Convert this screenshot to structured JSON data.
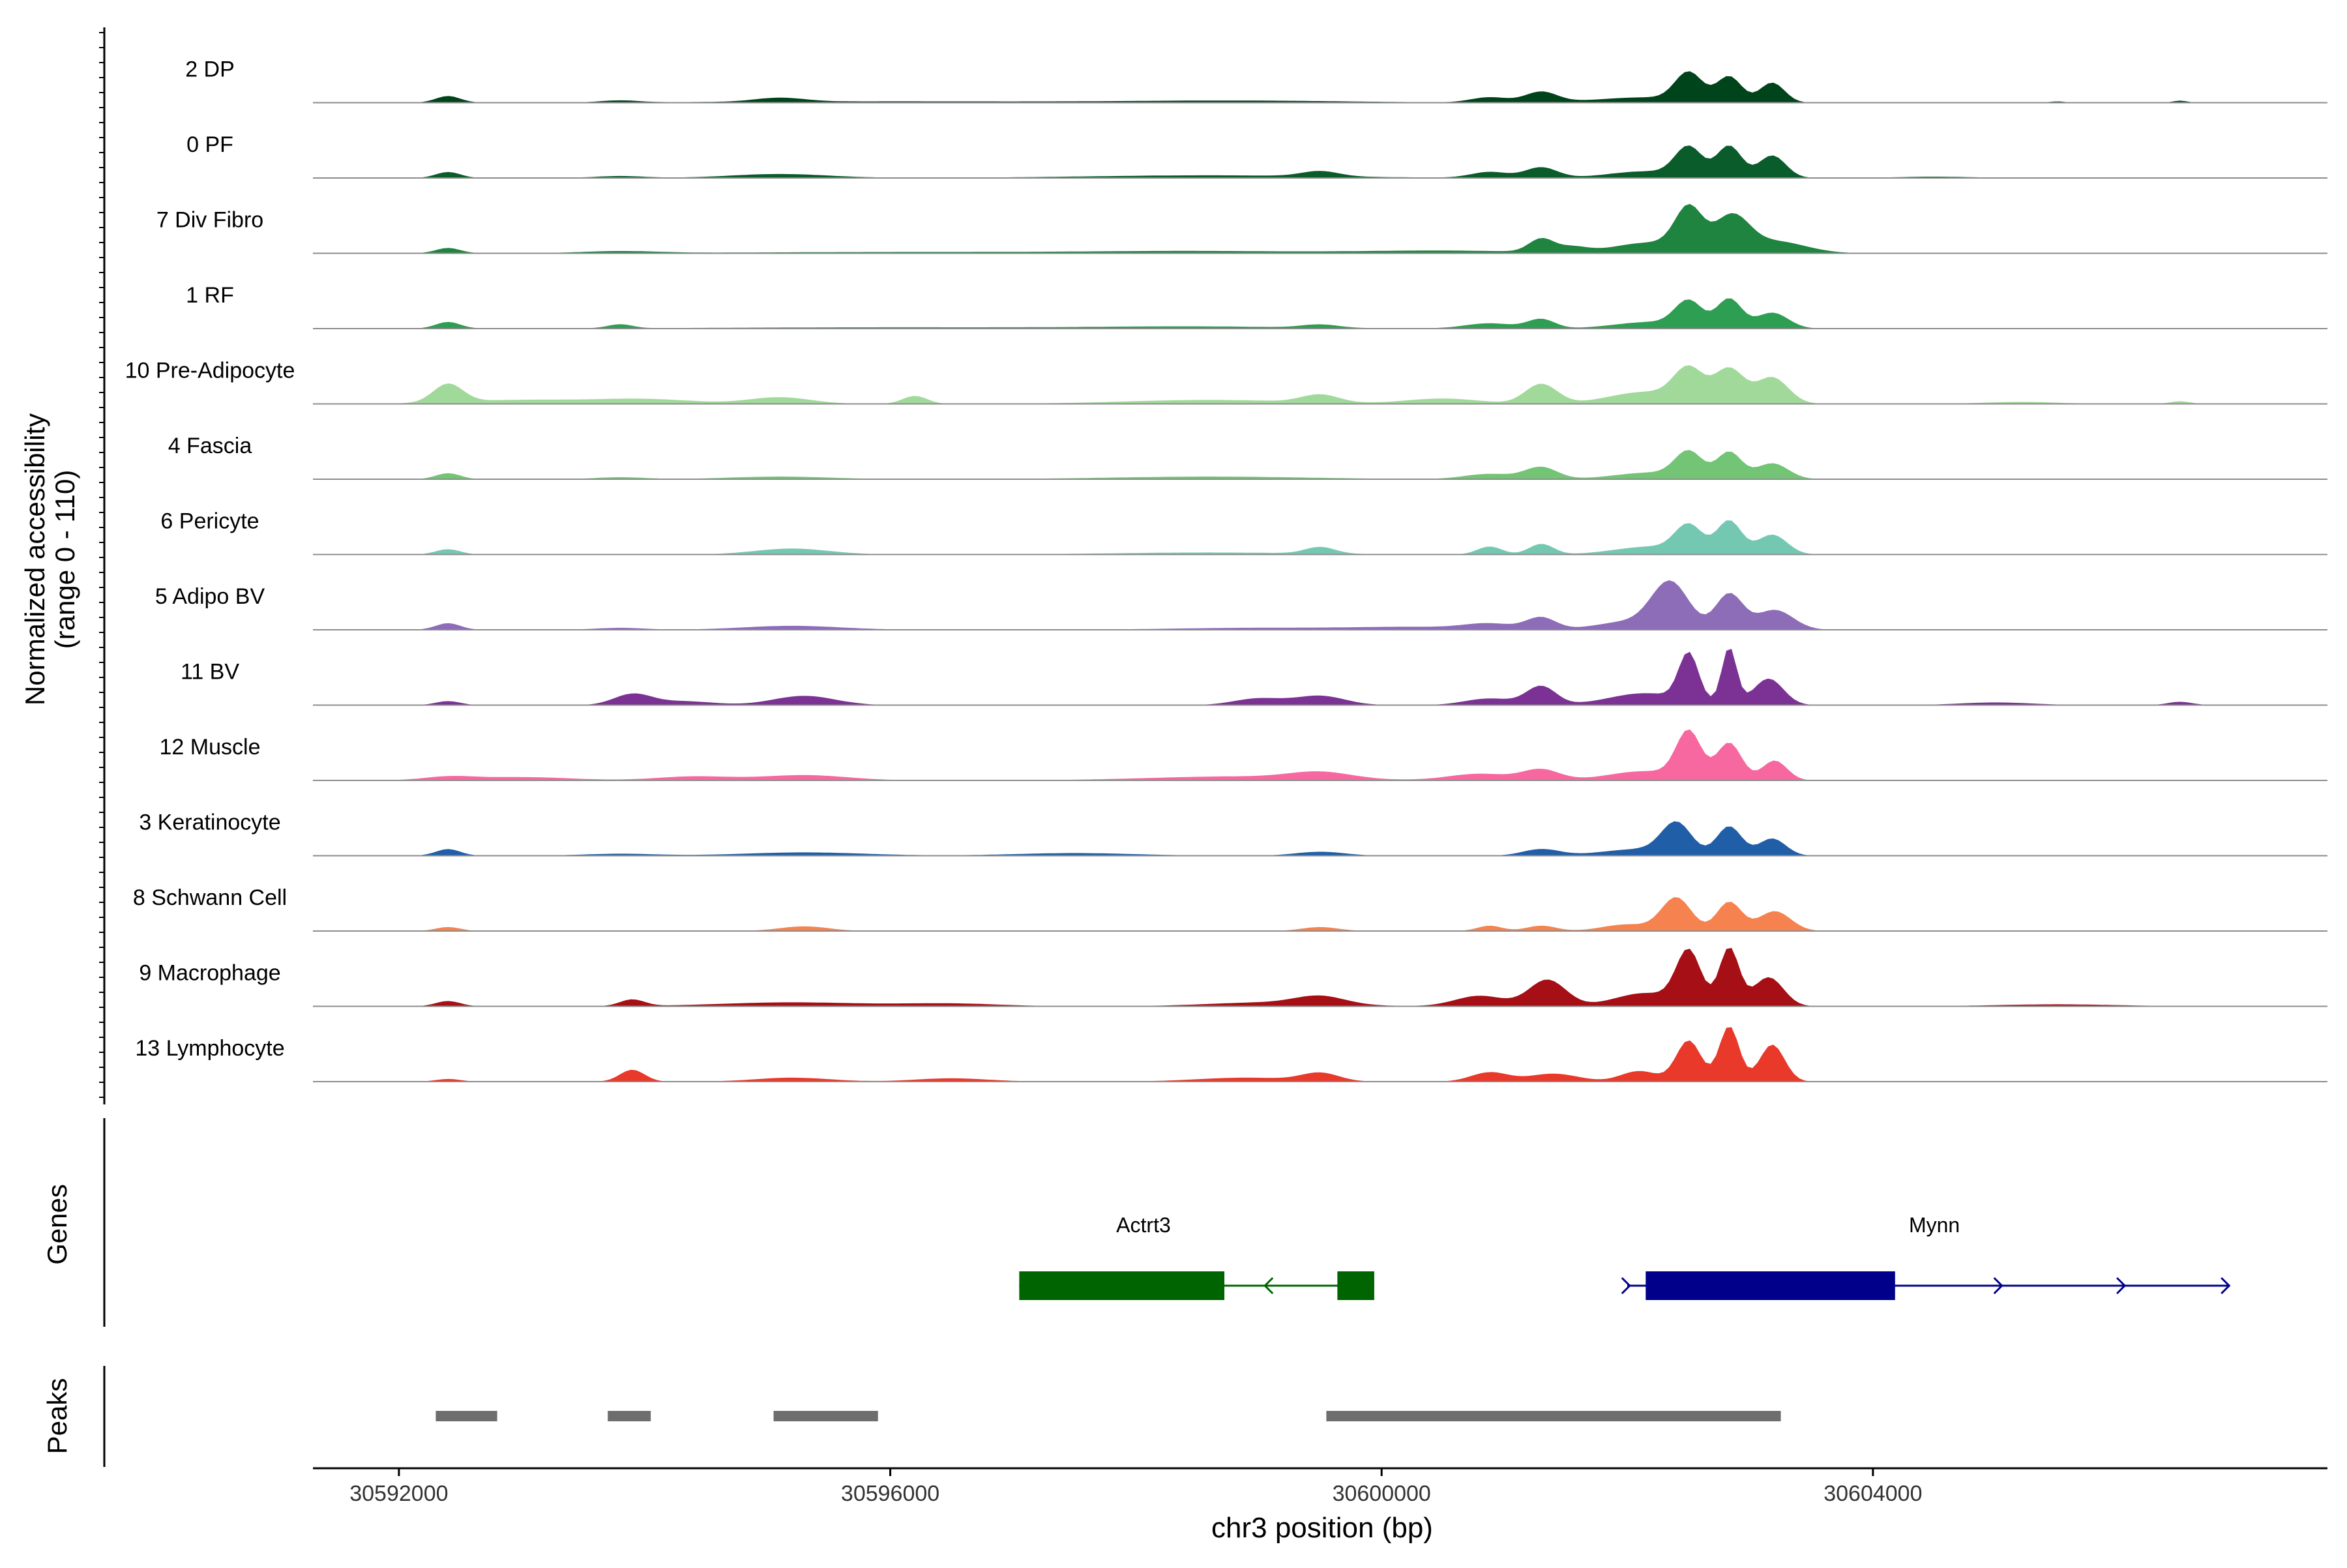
{
  "chart_data": {
    "type": "area",
    "ylabel_line1": "Normalized accessibility",
    "ylabel_line2": "(range 0 - 110)",
    "xlabel": "chr3 position (bp)",
    "xlim": [
      30591300,
      30607700
    ],
    "xticks": [
      30592000,
      30596000,
      30600000,
      30604000
    ],
    "xtick_labels": [
      "30592000",
      "30596000",
      "30600000",
      "30604000"
    ],
    "ylim": [
      0,
      110
    ],
    "series": [
      {
        "name": "2 DP",
        "color": "#00441b",
        "peaks": [
          [
            30602500,
            42,
            110
          ],
          [
            30602830,
            38,
            100
          ],
          [
            30603180,
            30,
            100
          ],
          [
            30602150,
            8,
            400
          ],
          [
            30601300,
            16,
            130
          ],
          [
            30600880,
            8,
            150
          ],
          [
            30598850,
            3,
            900
          ],
          [
            30596000,
            2,
            1400
          ],
          [
            30595100,
            6,
            200
          ],
          [
            30592400,
            10,
            100
          ],
          [
            30593800,
            3,
            150
          ],
          [
            30606500,
            3,
            60
          ],
          [
            30605500,
            2,
            60
          ]
        ]
      },
      {
        "name": "0 PF",
        "color": "#0a5c2b",
        "peaks": [
          [
            30602500,
            44,
            110
          ],
          [
            30602830,
            48,
            100
          ],
          [
            30603180,
            34,
            110
          ],
          [
            30602150,
            10,
            300
          ],
          [
            30601300,
            16,
            130
          ],
          [
            30599500,
            8,
            150
          ],
          [
            30600880,
            9,
            150
          ],
          [
            30598600,
            4,
            1000
          ],
          [
            30595100,
            6,
            400
          ],
          [
            30592400,
            9,
            100
          ],
          [
            30593800,
            3,
            200
          ],
          [
            30604500,
            2,
            300
          ]
        ]
      },
      {
        "name": "7 Div Fibro",
        "color": "#1e843f",
        "peaks": [
          [
            30602500,
            62,
            110
          ],
          [
            30602850,
            52,
            140
          ],
          [
            30603200,
            18,
            250
          ],
          [
            30602200,
            16,
            300
          ],
          [
            30601300,
            20,
            100
          ],
          [
            30601550,
            8,
            120
          ],
          [
            30600500,
            4,
            700
          ],
          [
            30598500,
            3,
            800
          ],
          [
            30596200,
            2,
            1400
          ],
          [
            30592400,
            8,
            100
          ],
          [
            30593800,
            3,
            300
          ]
        ]
      },
      {
        "name": "1 RF",
        "color": "#2e9e52",
        "peaks": [
          [
            30602500,
            38,
            110
          ],
          [
            30602830,
            44,
            100
          ],
          [
            30603180,
            24,
            130
          ],
          [
            30602200,
            10,
            300
          ],
          [
            30601300,
            14,
            110
          ],
          [
            30600880,
            8,
            200
          ],
          [
            30599500,
            5,
            150
          ],
          [
            30598500,
            3,
            800
          ],
          [
            30596000,
            2,
            1400
          ],
          [
            30592400,
            10,
            100
          ],
          [
            30593800,
            6,
            100
          ]
        ]
      },
      {
        "name": "10 Pre-Adipocyte",
        "color": "#a1d99b",
        "peaks": [
          [
            30602500,
            48,
            120
          ],
          [
            30602830,
            52,
            120
          ],
          [
            30603180,
            40,
            130
          ],
          [
            30602150,
            18,
            300
          ],
          [
            30601300,
            30,
            130
          ],
          [
            30600500,
            8,
            300
          ],
          [
            30599500,
            12,
            150
          ],
          [
            30598600,
            6,
            700
          ],
          [
            30592400,
            28,
            120
          ],
          [
            30593000,
            6,
            500
          ],
          [
            30594000,
            7,
            400
          ],
          [
            30595100,
            10,
            250
          ],
          [
            30596200,
            12,
            100
          ],
          [
            30605200,
            3,
            300
          ],
          [
            30606500,
            4,
            80
          ]
        ]
      },
      {
        "name": "4 Fascia",
        "color": "#74c476",
        "peaks": [
          [
            30602500,
            38,
            110
          ],
          [
            30602830,
            40,
            100
          ],
          [
            30603180,
            24,
            130
          ],
          [
            30602200,
            10,
            300
          ],
          [
            30601300,
            18,
            130
          ],
          [
            30600880,
            8,
            200
          ],
          [
            30598600,
            4,
            800
          ],
          [
            30595100,
            4,
            400
          ],
          [
            30592400,
            9,
            100
          ],
          [
            30593800,
            3,
            200
          ]
        ]
      },
      {
        "name": "6 Pericyte",
        "color": "#74c8b2",
        "peaks": [
          [
            30602500,
            40,
            110
          ],
          [
            30602830,
            50,
            100
          ],
          [
            30603180,
            30,
            120
          ],
          [
            30602200,
            12,
            300
          ],
          [
            30601300,
            16,
            100
          ],
          [
            30600880,
            12,
            100
          ],
          [
            30599500,
            10,
            120
          ],
          [
            30598600,
            3,
            800
          ],
          [
            30595200,
            9,
            300
          ],
          [
            30592400,
            8,
            100
          ]
        ]
      },
      {
        "name": "5 Adipo BV",
        "color": "#8d6db8",
        "peaks": [
          [
            30602350,
            70,
            150
          ],
          [
            30602830,
            54,
            110
          ],
          [
            30603200,
            30,
            150
          ],
          [
            30602000,
            12,
            250
          ],
          [
            30601300,
            18,
            120
          ],
          [
            30600880,
            8,
            200
          ],
          [
            30600300,
            4,
            500
          ],
          [
            30599000,
            3,
            700
          ],
          [
            30595200,
            6,
            400
          ],
          [
            30592400,
            10,
            100
          ],
          [
            30593800,
            3,
            200
          ]
        ]
      },
      {
        "name": "11 BV",
        "color": "#7b3294",
        "peaks": [
          [
            30602500,
            72,
            80
          ],
          [
            30602830,
            86,
            60
          ],
          [
            30603150,
            40,
            120
          ],
          [
            30602150,
            18,
            300
          ],
          [
            30601300,
            28,
            120
          ],
          [
            30600880,
            10,
            200
          ],
          [
            30599500,
            14,
            200
          ],
          [
            30599000,
            10,
            200
          ],
          [
            30595300,
            14,
            250
          ],
          [
            30594300,
            6,
            250
          ],
          [
            30593900,
            16,
            150
          ],
          [
            30592400,
            6,
            100
          ],
          [
            30605000,
            4,
            300
          ],
          [
            30606500,
            5,
            100
          ]
        ]
      },
      {
        "name": "12 Muscle",
        "color": "#f768a1",
        "peaks": [
          [
            30602500,
            70,
            100
          ],
          [
            30602830,
            56,
            100
          ],
          [
            30603200,
            30,
            100
          ],
          [
            30602150,
            14,
            300
          ],
          [
            30601300,
            16,
            150
          ],
          [
            30600800,
            10,
            250
          ],
          [
            30599500,
            10,
            250
          ],
          [
            30598800,
            6,
            700
          ],
          [
            30595300,
            8,
            350
          ],
          [
            30594400,
            6,
            300
          ],
          [
            30593000,
            5,
            400
          ],
          [
            30592400,
            5,
            200
          ]
        ]
      },
      {
        "name": "3 Keratinocyte",
        "color": "#215ea8",
        "peaks": [
          [
            30602400,
            46,
            120
          ],
          [
            30602830,
            44,
            100
          ],
          [
            30603180,
            26,
            110
          ],
          [
            30602100,
            10,
            300
          ],
          [
            30601300,
            10,
            150
          ],
          [
            30599500,
            6,
            200
          ],
          [
            30597500,
            4,
            500
          ],
          [
            30595300,
            5,
            500
          ],
          [
            30592400,
            10,
            100
          ],
          [
            30593800,
            3,
            300
          ]
        ]
      },
      {
        "name": "8 Schwann Cell",
        "color": "#f6834f",
        "peaks": [
          [
            30602400,
            50,
            120
          ],
          [
            30602830,
            44,
            100
          ],
          [
            30603200,
            30,
            130
          ],
          [
            30602000,
            10,
            200
          ],
          [
            30601300,
            8,
            120
          ],
          [
            30600880,
            8,
            100
          ],
          [
            30599500,
            6,
            150
          ],
          [
            30595300,
            7,
            200
          ],
          [
            30592400,
            6,
            100
          ]
        ]
      },
      {
        "name": "9 Macrophage",
        "color": "#a50f15",
        "peaks": [
          [
            30602500,
            80,
            100
          ],
          [
            30602830,
            88,
            80
          ],
          [
            30603150,
            44,
            120
          ],
          [
            30602150,
            20,
            250
          ],
          [
            30601350,
            40,
            150
          ],
          [
            30600800,
            16,
            200
          ],
          [
            30599500,
            12,
            200
          ],
          [
            30599100,
            6,
            500
          ],
          [
            30595200,
            6,
            600
          ],
          [
            30593900,
            10,
            100
          ],
          [
            30592400,
            8,
            100
          ],
          [
            30596500,
            4,
            400
          ],
          [
            30605500,
            3,
            500
          ]
        ]
      },
      {
        "name": "13 Lymphocyte",
        "color": "#e8392b",
        "peaks": [
          [
            30602500,
            62,
            100
          ],
          [
            30602830,
            84,
            80
          ],
          [
            30603180,
            56,
            100
          ],
          [
            30602100,
            16,
            150
          ],
          [
            30601400,
            12,
            200
          ],
          [
            30600880,
            14,
            150
          ],
          [
            30599500,
            12,
            150
          ],
          [
            30598900,
            6,
            400
          ],
          [
            30595200,
            6,
            300
          ],
          [
            30593900,
            18,
            100
          ],
          [
            30592400,
            4,
            100
          ],
          [
            30596500,
            5,
            300
          ]
        ]
      }
    ],
    "genes_label": "Genes",
    "genes": [
      {
        "name": "Actrt3",
        "color": "#006400",
        "strand": "-",
        "start": 30597050,
        "end": 30599940,
        "exons": [
          [
            30597050,
            30598720
          ],
          [
            30599640,
            30599940
          ]
        ],
        "arrows": [
          30599050
        ]
      },
      {
        "name": "Mynn",
        "color": "#00008b",
        "strand": "+",
        "start": 30602000,
        "end": 30606900,
        "exons": [
          [
            30602150,
            30604180
          ]
        ],
        "arrows": [
          30602020,
          30605050,
          30606050,
          30606900
        ]
      }
    ],
    "peaks_label": "Peaks",
    "peak_regions": [
      [
        30592300,
        30592800
      ],
      [
        30593700,
        30594050
      ],
      [
        30595050,
        30595900
      ],
      [
        30599550,
        30603250
      ]
    ],
    "peak_color": "#6e6e6e"
  }
}
